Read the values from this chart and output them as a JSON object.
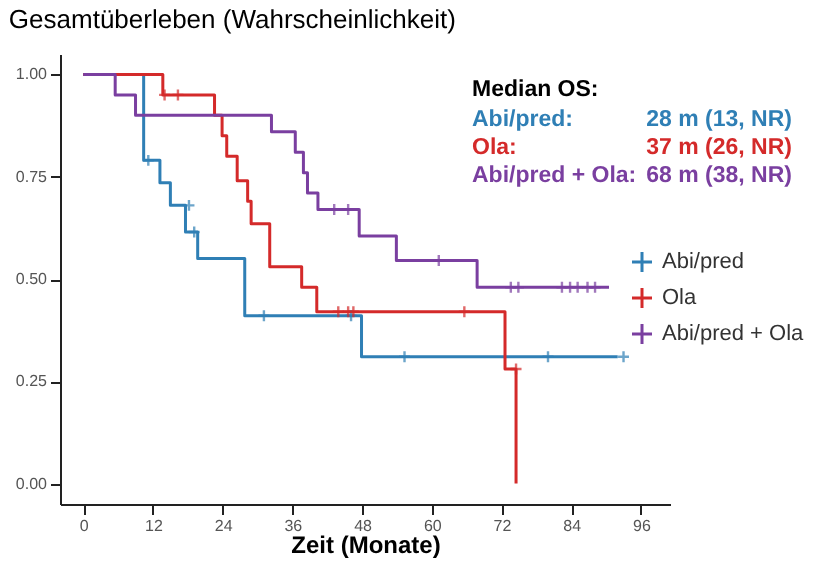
{
  "chart_data": {
    "type": "step",
    "title": "Gesamtüberleben (Wahrscheinlichkeit)",
    "xlabel": "Zeit (Monate)",
    "xlim": [
      -4,
      101
    ],
    "xticks": [
      0,
      12,
      24,
      36,
      48,
      60,
      72,
      84,
      96
    ],
    "ylim": [
      -0.05,
      1.05
    ],
    "yticks": [
      {
        "value": 0,
        "label": "0.00"
      },
      {
        "value": 0.25,
        "label": "0.25"
      },
      {
        "value": 0.5,
        "label": "0.50"
      },
      {
        "value": 0.75,
        "label": "0.75"
      },
      {
        "value": 1,
        "label": "1.00"
      }
    ],
    "grid": false,
    "legend": "right",
    "line_style": "solid",
    "annotations": [
      "Median OS:",
      "Abi/pred:",
      "28 m (13, NR)",
      "Ola:",
      "37 m (26, NR)",
      "Abi/pred + Ola:",
      "68 m (38, NR)"
    ],
    "series": [
      {
        "name": "Abi/pred",
        "type": "step",
        "color": "#2f7fb5",
        "x": [
          0,
          10.4,
          13.2,
          15,
          17.6,
          19.7,
          27.8,
          47.9,
          92
        ],
        "values": [
          1.0,
          0.79,
          0.735,
          0.68,
          0.615,
          0.55,
          0.41,
          0.31,
          0.31
        ]
      },
      {
        "name": "Ola",
        "type": "step",
        "color": "#d42a2a",
        "x": [
          0,
          13.7,
          22.6,
          23.9,
          24.7,
          26.5,
          28.3,
          28.9,
          32.1,
          37.6,
          40.2,
          72.6,
          74.5
        ],
        "values": [
          1.0,
          0.95,
          0.9,
          0.85,
          0.8,
          0.74,
          0.69,
          0.635,
          0.53,
          0.48,
          0.42,
          0.28,
          0.0
        ]
      },
      {
        "name": "Abi/pred + Ola",
        "type": "step",
        "color": "#7a3fa0",
        "x": [
          0,
          5.5,
          9,
          32.4,
          36.5,
          37.9,
          38.6,
          40.4,
          47.5,
          53.9,
          67.8,
          90.5
        ],
        "values": [
          1.0,
          0.95,
          0.9,
          0.86,
          0.81,
          0.76,
          0.71,
          0.67,
          0.605,
          0.545,
          0.48,
          0.48
        ]
      },
      {
        "type": "scatter",
        "marker": "cross",
        "color": "#2f7fb5",
        "x": [
          11.2,
          18.2,
          19.1,
          31.1,
          46.1,
          55.3,
          80,
          93
        ],
        "values": [
          0.79,
          0.68,
          0.615,
          0.41,
          0.41,
          0.31,
          0.31,
          0.31
        ]
      },
      {
        "type": "scatter",
        "marker": "cross",
        "color": "#d42a2a",
        "x": [
          14,
          16.3,
          43.9,
          45.6,
          46.5,
          65.6,
          74.5
        ],
        "values": [
          0.95,
          0.95,
          0.42,
          0.42,
          0.42,
          0.42,
          0.28
        ]
      },
      {
        "type": "scatter",
        "marker": "cross",
        "color": "#7a3fa0",
        "x": [
          43.2,
          45.6,
          61.2,
          73.6,
          74.9,
          82.4,
          83.8,
          85.1,
          86.8,
          88.1
        ],
        "values": [
          0.67,
          0.67,
          0.545,
          0.48,
          0.48,
          0.48,
          0.48,
          0.48,
          0.48,
          0.48
        ]
      }
    ]
  }
}
